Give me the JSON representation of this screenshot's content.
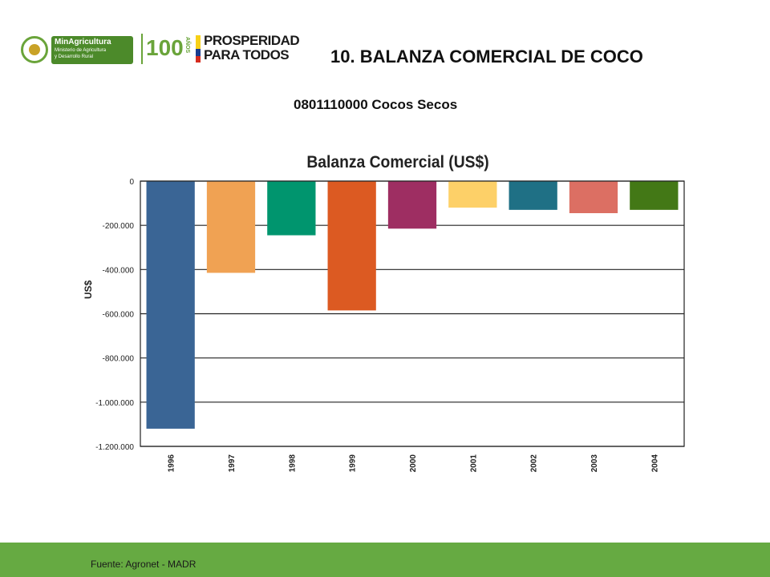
{
  "header": {
    "ministry_name": "MinAgricultura",
    "ministry_line1": "Ministerio de Agricultura",
    "ministry_line2": "y Desarrollo Rural",
    "anniversary_number": "100",
    "anniversary_word": "AÑOS",
    "slogan_line1": "PROSPERIDAD",
    "slogan_line2": "PARA TODOS"
  },
  "title": "10. BALANZA COMERCIAL DE COCO",
  "subtitle": "0801110000 Cocos Secos",
  "footer": {
    "source": "Fuente: Agronet - MADR"
  },
  "colors": {
    "band": "#66aa42",
    "flag": [
      "#f7d117",
      "#1a3d8f",
      "#d52b1e"
    ]
  },
  "chart_data": {
    "type": "bar",
    "title": "Balanza Comercial (US$)",
    "ylabel": "US$",
    "xlabel": "",
    "ylim": [
      -1200000,
      0
    ],
    "yticks": [
      0,
      -200000,
      -400000,
      -600000,
      -800000,
      -1000000,
      -1200000
    ],
    "ytick_labels": [
      "0",
      "-200.000",
      "-400.000",
      "-600.000",
      "-800.000",
      "-1.000.000",
      "-1.200.000"
    ],
    "grid": true,
    "categories": [
      "1996",
      "1997",
      "1998",
      "1999",
      "2000",
      "2001",
      "2002",
      "2003",
      "2004"
    ],
    "values": [
      -1120000,
      -415000,
      -245000,
      -585000,
      -215000,
      -120000,
      -130000,
      -145000,
      -130000
    ],
    "colors": [
      "#3a6595",
      "#f0a253",
      "#00956e",
      "#dc5a22",
      "#9e2e62",
      "#fdd068",
      "#1f7085",
      "#dc6f63",
      "#437816"
    ]
  }
}
